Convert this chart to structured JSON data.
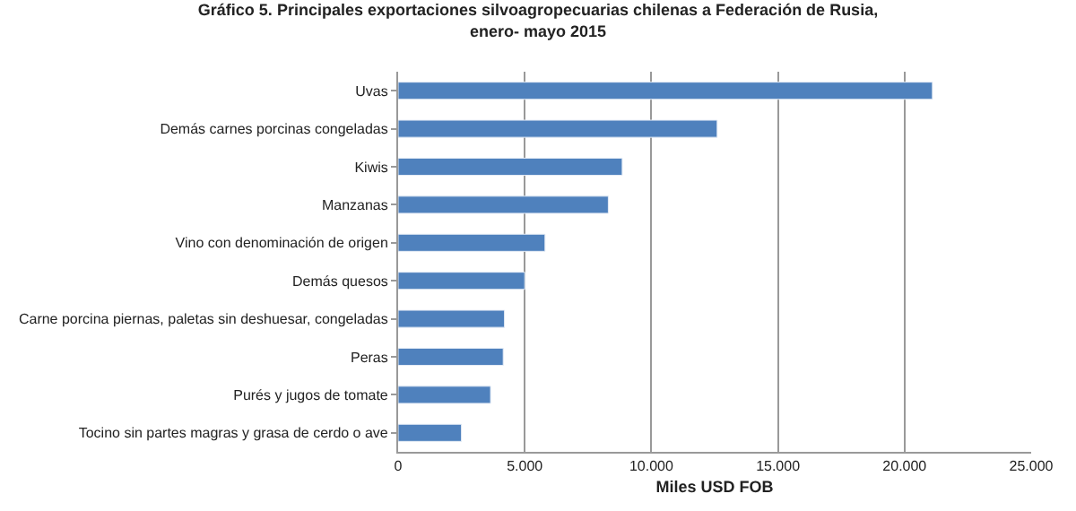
{
  "chart_data": {
    "type": "bar",
    "orientation": "horizontal",
    "title": "Gráfico 5. Principales exportaciones silvoagropecuarias chilenas a Federación de Rusia,\nenero- mayo 2015",
    "xlabel": "Miles USD FOB",
    "categories": [
      "Uvas",
      "Demás carnes porcinas congeladas",
      "Kiwis",
      "Manzanas",
      "Vino con denominación de origen",
      "Demás quesos",
      "Carne porcina piernas, paletas sin deshuesar, congeladas",
      "Peras",
      "Purés y jugos de tomate",
      "Tocino sin partes magras y grasa de cerdo o ave"
    ],
    "values": [
      21100,
      12600,
      8850,
      8300,
      5800,
      5000,
      4200,
      4150,
      3650,
      2500
    ],
    "color": "#4f81bd",
    "xlim": [
      0,
      25000
    ],
    "xticks": [
      {
        "value": 0,
        "label": "0"
      },
      {
        "value": 5000,
        "label": "5.000"
      },
      {
        "value": 10000,
        "label": "10.000"
      },
      {
        "value": 15000,
        "label": "15.000"
      },
      {
        "value": 20000,
        "label": "20.000"
      },
      {
        "value": 25000,
        "label": "25.000"
      }
    ],
    "grid": "x",
    "legend": false
  }
}
